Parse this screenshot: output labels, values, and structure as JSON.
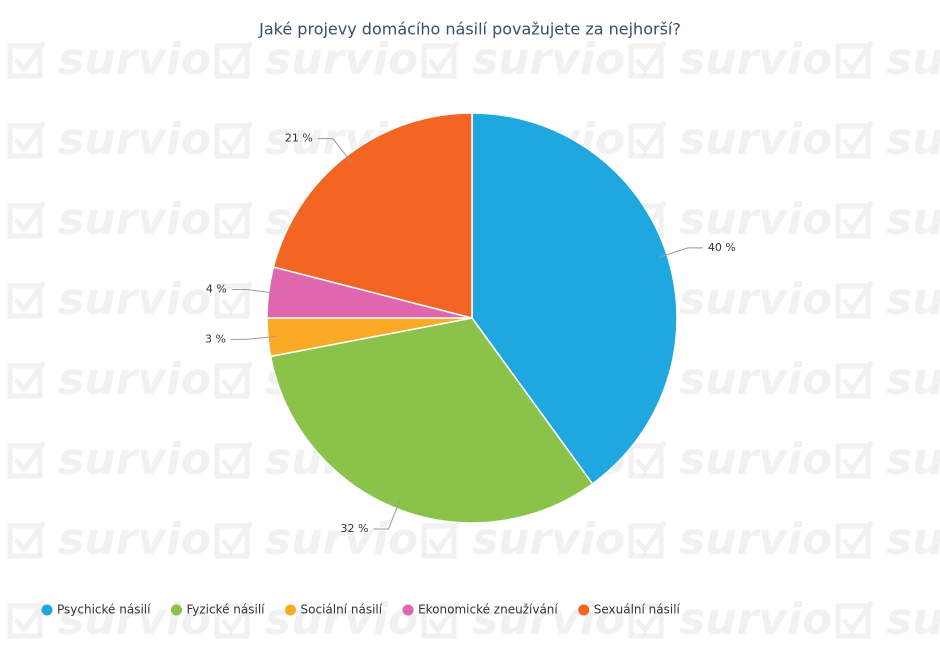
{
  "chart_data": {
    "type": "pie",
    "title": "Jaké projevy domácího násilí považujete za nejhorší?",
    "watermark": "survio",
    "categories": [
      "Psychické násilí",
      "Fyzické násilí",
      "Sociální násilí",
      "Ekonomické zneužívání",
      "Sexuální násilí"
    ],
    "values": [
      40,
      32,
      3,
      4,
      21
    ],
    "value_labels": [
      "40 %",
      "32 %",
      "3 %",
      "4 %",
      "21 %"
    ],
    "colors": [
      "#1fa8e0",
      "#8bc34a",
      "#fbaa25",
      "#e066ad",
      "#f26522"
    ],
    "legend": "bottom"
  }
}
